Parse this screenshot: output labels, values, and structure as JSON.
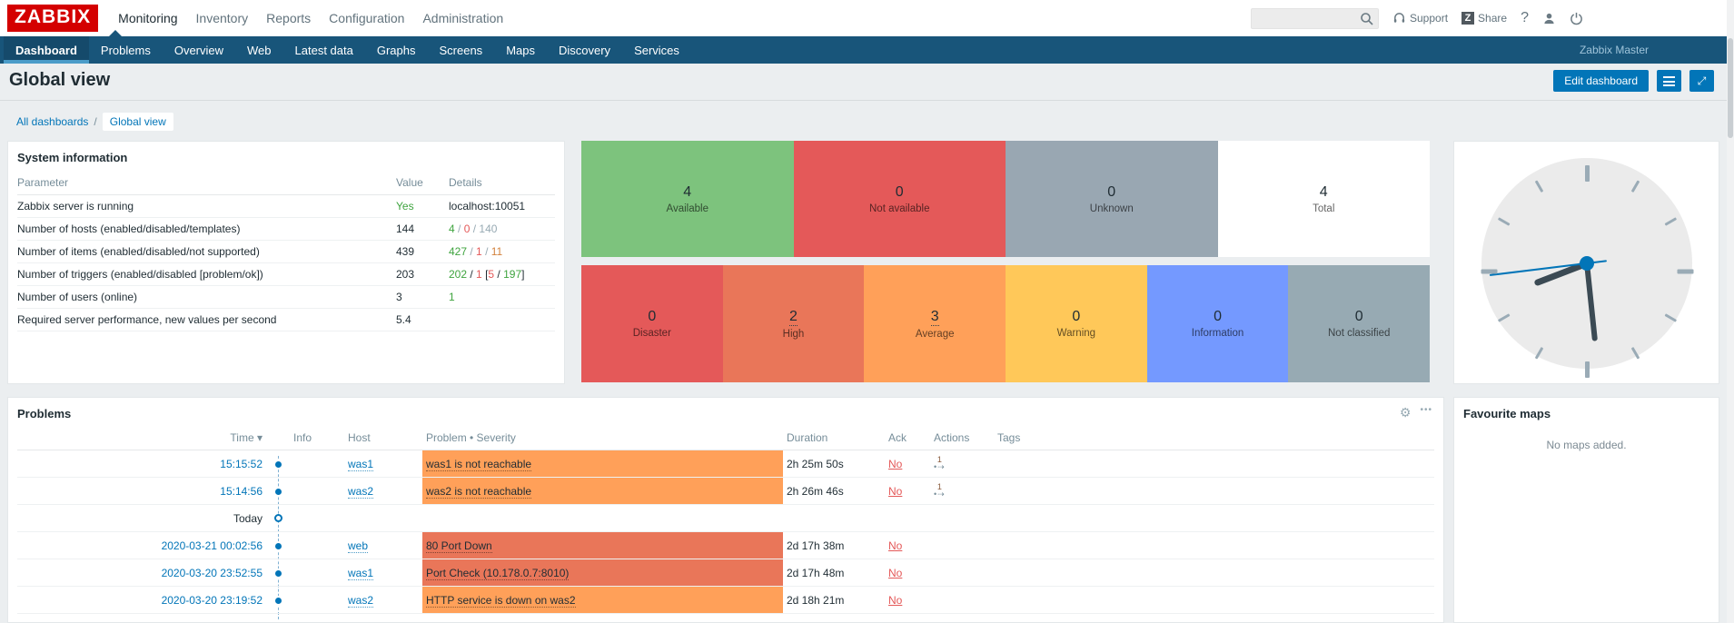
{
  "topbar": {
    "logo": "ZABBIX",
    "menu": [
      "Monitoring",
      "Inventory",
      "Reports",
      "Configuration",
      "Administration"
    ],
    "active_menu": "Monitoring",
    "search": {
      "value": "",
      "placeholder": ""
    },
    "support": "Support",
    "share": "Share",
    "share_badge": "Z",
    "help": "?"
  },
  "subnav": {
    "items": [
      "Dashboard",
      "Problems",
      "Overview",
      "Web",
      "Latest data",
      "Graphs",
      "Screens",
      "Maps",
      "Discovery",
      "Services"
    ],
    "active_item": "Dashboard",
    "user": "Zabbix Master"
  },
  "page": {
    "title": "Global view",
    "edit_button": "Edit dashboard",
    "breadcrumb_parent": "All dashboards",
    "breadcrumb_separator": "/",
    "breadcrumb_current": "Global view"
  },
  "icons": {
    "gear": "⚙",
    "more": "•••",
    "expand": "⤢",
    "action_arrow": "•⇢"
  },
  "system_info": {
    "title": "System information",
    "columns": [
      "Parameter",
      "Value",
      "Details"
    ],
    "rows": [
      {
        "parameter": "Zabbix server is running",
        "value": "Yes",
        "value_color": "green",
        "details": [
          {
            "text": "localhost:10051",
            "color": "dark"
          }
        ]
      },
      {
        "parameter": "Number of hosts (enabled/disabled/templates)",
        "value": "144",
        "value_color": "dark",
        "details": [
          {
            "text": "4",
            "color": "green"
          },
          {
            "text": " / ",
            "color": "gray"
          },
          {
            "text": "0",
            "color": "red"
          },
          {
            "text": " / ",
            "color": "gray"
          },
          {
            "text": "140",
            "color": "gray"
          }
        ]
      },
      {
        "parameter": "Number of items (enabled/disabled/not supported)",
        "value": "439",
        "value_color": "dark",
        "details": [
          {
            "text": "427",
            "color": "green"
          },
          {
            "text": " / ",
            "color": "gray"
          },
          {
            "text": "1",
            "color": "red"
          },
          {
            "text": " / ",
            "color": "gray"
          },
          {
            "text": "11",
            "color": "orange"
          }
        ]
      },
      {
        "parameter": "Number of triggers (enabled/disabled [problem/ok])",
        "value": "203",
        "value_color": "dark",
        "details": [
          {
            "text": "202",
            "color": "green"
          },
          {
            "text": " / ",
            "color": "dark"
          },
          {
            "text": "1",
            "color": "red"
          },
          {
            "text": " [",
            "color": "dark"
          },
          {
            "text": "5",
            "color": "red"
          },
          {
            "text": " / ",
            "color": "dark"
          },
          {
            "text": "197",
            "color": "green"
          },
          {
            "text": "]",
            "color": "dark"
          }
        ]
      },
      {
        "parameter": "Number of users (online)",
        "value": "3",
        "value_color": "dark",
        "details": [
          {
            "text": "1",
            "color": "green"
          }
        ]
      },
      {
        "parameter": "Required server performance, new values per second",
        "value": "5.4",
        "value_color": "dark",
        "details": []
      }
    ]
  },
  "host_availability": {
    "blocks": [
      {
        "count": "4",
        "label": "Available",
        "color": "#7DC37D"
      },
      {
        "count": "0",
        "label": "Not available",
        "color": "#E45959"
      },
      {
        "count": "0",
        "label": "Unknown",
        "color": "#99A7B2"
      },
      {
        "count": "4",
        "label": "Total",
        "color": "#FFFFFF"
      }
    ]
  },
  "problems_by_severity": {
    "blocks": [
      {
        "count": "0",
        "label": "Disaster",
        "color": "#E45959",
        "link": false
      },
      {
        "count": "2",
        "label": "High",
        "color": "#E97659",
        "link": true
      },
      {
        "count": "3",
        "label": "Average",
        "color": "#FFA059",
        "link": true
      },
      {
        "count": "0",
        "label": "Warning",
        "color": "#FFC859",
        "link": false
      },
      {
        "count": "0",
        "label": "Information",
        "color": "#7499FF",
        "link": false
      },
      {
        "count": "0",
        "label": "Not classified",
        "color": "#97AAB3",
        "link": false
      }
    ]
  },
  "clock": {
    "hour_angle": 249,
    "minute_angle": 174,
    "second_angle": 263
  },
  "problems": {
    "title": "Problems",
    "columns": [
      "Time",
      "Info",
      "Host",
      "Problem • Severity",
      "Duration",
      "Ack",
      "Actions",
      "Tags"
    ],
    "sort_column": "Time",
    "sort_arrow": "▾",
    "severity_colors": {
      "average": "#FFA059",
      "high": "#E97659"
    },
    "rows": [
      {
        "time": "15:15:52",
        "host": "was1",
        "problem": "was1 is not reachable",
        "severity": "average",
        "duration": "2h 25m 50s",
        "ack": "No",
        "actions": "1"
      },
      {
        "time": "15:14:56",
        "host": "was2",
        "problem": "was2 is not reachable",
        "severity": "average",
        "duration": "2h 26m 46s",
        "ack": "No",
        "actions": "1"
      },
      {
        "divider": "Today"
      },
      {
        "time": "2020-03-21 00:02:56",
        "host": "web",
        "problem": "80 Port Down",
        "severity": "high",
        "duration": "2d 17h 38m",
        "ack": "No",
        "actions": ""
      },
      {
        "time": "2020-03-20 23:52:55",
        "host": "was1",
        "problem": "Port Check (10.178.0.7:8010)",
        "severity": "high",
        "duration": "2d 17h 48m",
        "ack": "No",
        "actions": ""
      },
      {
        "time": "2020-03-20 23:19:52",
        "host": "was2",
        "problem": "HTTP service is down on was2",
        "severity": "average",
        "duration": "2d 18h 21m",
        "ack": "No",
        "actions": ""
      }
    ]
  },
  "favourite_maps": {
    "title": "Favourite maps",
    "empty_text": "No maps added."
  }
}
